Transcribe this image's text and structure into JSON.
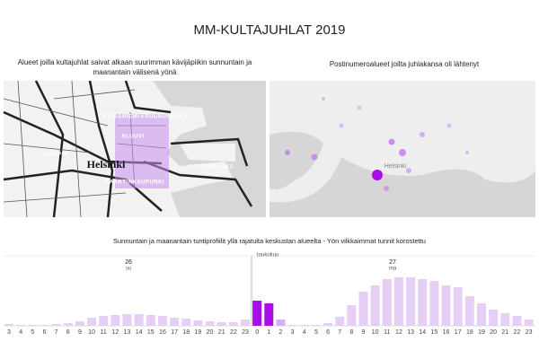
{
  "title": "MM-KULTAJUHLAT 2019",
  "maps": [
    {
      "title": [
        "Alueet joilla kultajuhlat saivat alkaan suurimman kävijäpiikin sunnuntain ja",
        "maanantain välisenä yönä"
      ],
      "labels": [
        "Helsinki",
        "KAMPPI",
        "KATAJANOKKA",
        "KAISANIEMI",
        "KRUUNUNHAKA",
        "KLUUVI",
        "KAARTINKAUPUNKI"
      ]
    },
    {
      "title": [
        "Postinumeroalueet joilta juhlakansa oli lähtenyt"
      ],
      "labels": [
        "Helsinki"
      ]
    }
  ],
  "chart_data": {
    "type": "bar",
    "title": "Sunnuntain ja maanantain tuntiprofiilit yllä rajatulta keskustan alueelta - Yön vilkkaimmat tunnit korostettu",
    "categories": [
      "3",
      "4",
      "5",
      "6",
      "7",
      "8",
      "9",
      "10",
      "11",
      "12",
      "13",
      "14",
      "15",
      "16",
      "17",
      "18",
      "19",
      "20",
      "21",
      "22",
      "23",
      "0",
      "1",
      "2",
      "3",
      "4",
      "5",
      "6",
      "7",
      "8",
      "9",
      "10",
      "11",
      "12",
      "13",
      "14",
      "15",
      "16",
      "17",
      "18",
      "19",
      "20",
      "21",
      "22",
      "23"
    ],
    "values": [
      2,
      1,
      1,
      1,
      2,
      3,
      5,
      9,
      11,
      12,
      13,
      13,
      12,
      11,
      9,
      8,
      6,
      5,
      4,
      4,
      7,
      28,
      25,
      7,
      1,
      1,
      1,
      3,
      10,
      23,
      38,
      45,
      52,
      54,
      54,
      52,
      50,
      45,
      43,
      33,
      25,
      18,
      14,
      11,
      7
    ],
    "colors": [
      "#e6cff5",
      "#e6cff5",
      "#e6cff5",
      "#e6cff5",
      "#e6cff5",
      "#e6cff5",
      "#e6cff5",
      "#e6cff5",
      "#e6cff5",
      "#e6cff5",
      "#e6cff5",
      "#e6cff5",
      "#e6cff5",
      "#e6cff5",
      "#e6cff5",
      "#e6cff5",
      "#e6cff5",
      "#e6cff5",
      "#e6cff5",
      "#e6cff5",
      "#e6cff5",
      "#a80ee8",
      "#a80ee8",
      "#d8aef2",
      "#e6cff5",
      "#e6cff5",
      "#e6cff5",
      "#e6cff5",
      "#e6cff5",
      "#e6cff5",
      "#e6cff5",
      "#e6cff5",
      "#e6cff5",
      "#e6cff5",
      "#e6cff5",
      "#e6cff5",
      "#e6cff5",
      "#e6cff5",
      "#e6cff5",
      "#e6cff5",
      "#e6cff5",
      "#e6cff5",
      "#e6cff5",
      "#e6cff5",
      "#e6cff5"
    ],
    "annotations": [
      "26",
      "su",
      "toukokuu",
      "27",
      "ma"
    ]
  }
}
